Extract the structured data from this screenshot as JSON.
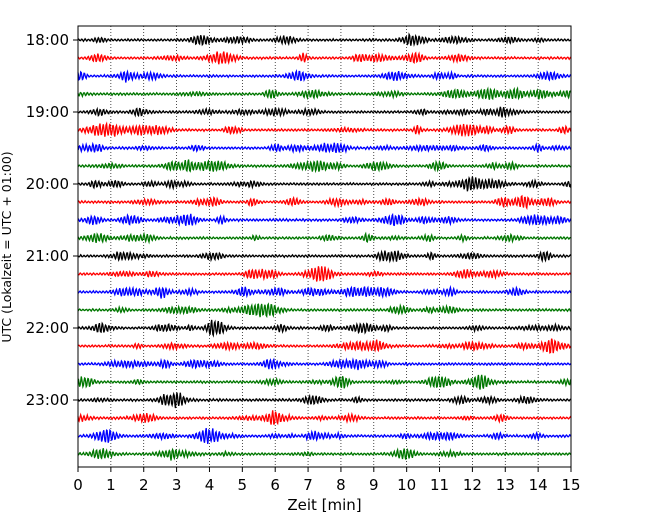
{
  "chart_data": {
    "type": "line",
    "title": "",
    "xlabel": "Zeit  [min]",
    "ylabel": "UTC (Lokalzeit = UTC + 01:00)",
    "xlim": [
      0,
      15
    ],
    "x_ticks": [
      0,
      1,
      2,
      3,
      4,
      5,
      6,
      7,
      8,
      9,
      10,
      11,
      12,
      13,
      14,
      15
    ],
    "grid": "vertical dotted lines at each minute",
    "row_interval_minutes": 15,
    "y_tick_labels": [
      "18:00",
      "19:00",
      "20:00",
      "21:00",
      "22:00",
      "23:00"
    ],
    "series_colors_cycle": [
      "#000000",
      "#ff0000",
      "#0000ff",
      "#007700"
    ],
    "rows": [
      {
        "start": "18:00",
        "color": "#000000"
      },
      {
        "start": "18:15",
        "color": "#ff0000"
      },
      {
        "start": "18:30",
        "color": "#0000ff"
      },
      {
        "start": "18:45",
        "color": "#007700"
      },
      {
        "start": "19:00",
        "color": "#000000"
      },
      {
        "start": "19:15",
        "color": "#ff0000"
      },
      {
        "start": "19:30",
        "color": "#0000ff"
      },
      {
        "start": "19:45",
        "color": "#007700"
      },
      {
        "start": "20:00",
        "color": "#000000"
      },
      {
        "start": "20:15",
        "color": "#ff0000"
      },
      {
        "start": "20:30",
        "color": "#0000ff"
      },
      {
        "start": "20:45",
        "color": "#007700"
      },
      {
        "start": "21:00",
        "color": "#000000"
      },
      {
        "start": "21:15",
        "color": "#ff0000"
      },
      {
        "start": "21:30",
        "color": "#0000ff"
      },
      {
        "start": "21:45",
        "color": "#007700"
      },
      {
        "start": "22:00",
        "color": "#000000"
      },
      {
        "start": "22:15",
        "color": "#ff0000"
      },
      {
        "start": "22:30",
        "color": "#0000ff"
      },
      {
        "start": "22:45",
        "color": "#007700"
      },
      {
        "start": "23:00",
        "color": "#000000"
      },
      {
        "start": "23:15",
        "color": "#ff0000"
      },
      {
        "start": "23:30",
        "color": "#0000ff"
      },
      {
        "start": "23:45",
        "color": "#007700"
      }
    ]
  }
}
